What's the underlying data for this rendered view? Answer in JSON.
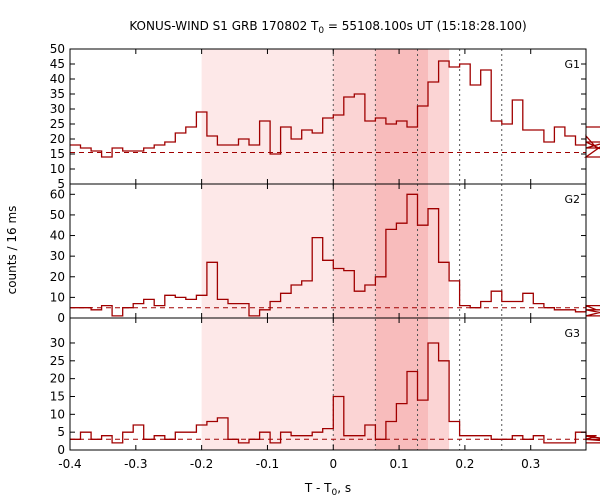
{
  "chart_data": {
    "type": "line",
    "title": "KONUS-WIND S1 GRB 170802 T",
    "title_sub": "0",
    "title_rest": " = 55108.100s UT (15:18:28.100)",
    "xlabel": "T - T",
    "xlabel_sub": "0",
    "xlabel_rest": ", s",
    "ylabel": "counts / 16 ms",
    "xlim": [
      -0.4,
      0.384
    ],
    "x_ticks": [
      "-0.4",
      "-0.3",
      "-0.2",
      "-0.1",
      "0",
      "0.1",
      "0.2",
      "0.3"
    ],
    "bin_width": 0.016,
    "bin_start": -0.4,
    "shaded_regions": [
      {
        "from": -0.2,
        "to": 0.176,
        "shade": "light"
      },
      {
        "from": 0.0,
        "to": 0.064,
        "shade": "medium"
      },
      {
        "from": 0.064,
        "to": 0.144,
        "shade": "dark"
      },
      {
        "from": 0.144,
        "to": 0.176,
        "shade": "medium"
      }
    ],
    "dotted_lines": [
      0.0,
      0.064,
      0.128,
      0.192,
      0.256
    ],
    "colors": {
      "line": "#a00000",
      "shade_light": "#fde8e8",
      "shade_medium": "#fbd4d4",
      "shade_dark": "#f8bcbc"
    },
    "panels": [
      {
        "name": "G1",
        "ylim": [
          5,
          50
        ],
        "y_ticks": [
          "5",
          "10",
          "15",
          "20",
          "25",
          "30",
          "35",
          "40",
          "45",
          "50"
        ],
        "background": 15.5,
        "values": [
          18,
          17,
          16,
          14,
          17,
          16,
          16,
          17,
          18,
          19,
          22,
          24,
          29,
          21,
          18,
          18,
          20,
          18,
          26,
          15,
          24,
          20,
          23,
          22,
          27,
          28,
          34,
          35,
          26,
          27,
          25,
          26,
          24,
          31,
          39,
          46,
          44,
          45,
          38,
          43,
          26,
          25,
          33,
          23,
          23,
          19,
          24,
          21,
          18,
          21,
          17,
          19,
          14,
          24
        ]
      },
      {
        "name": "G2",
        "ylim": [
          0,
          65
        ],
        "y_ticks": [
          "0",
          "10",
          "20",
          "30",
          "40",
          "50",
          "60"
        ],
        "background": 5,
        "values": [
          5,
          5,
          4,
          6,
          1,
          5,
          7,
          9,
          6,
          11,
          10,
          9,
          11,
          27,
          9,
          7,
          7,
          1,
          4,
          8,
          12,
          16,
          18,
          39,
          28,
          24,
          23,
          13,
          16,
          20,
          43,
          46,
          60,
          45,
          53,
          27,
          18,
          6,
          5,
          8,
          13,
          8,
          8,
          12,
          7,
          5,
          4,
          4,
          3,
          6,
          4,
          4,
          1,
          6
        ]
      },
      {
        "name": "G3",
        "ylim": [
          0,
          37
        ],
        "y_ticks": [
          "0",
          "5",
          "10",
          "15",
          "20",
          "25",
          "30"
        ],
        "background": 3,
        "values": [
          3,
          5,
          3,
          4,
          2,
          5,
          7,
          3,
          4,
          3,
          5,
          5,
          7,
          8,
          9,
          3,
          2,
          3,
          5,
          2,
          5,
          4,
          4,
          5,
          6,
          15,
          4,
          4,
          7,
          3,
          8,
          13,
          22,
          14,
          30,
          25,
          8,
          4,
          4,
          4,
          3,
          3,
          4,
          3,
          4,
          2,
          2,
          2,
          5,
          3,
          4,
          3,
          3,
          2
        ]
      }
    ]
  }
}
